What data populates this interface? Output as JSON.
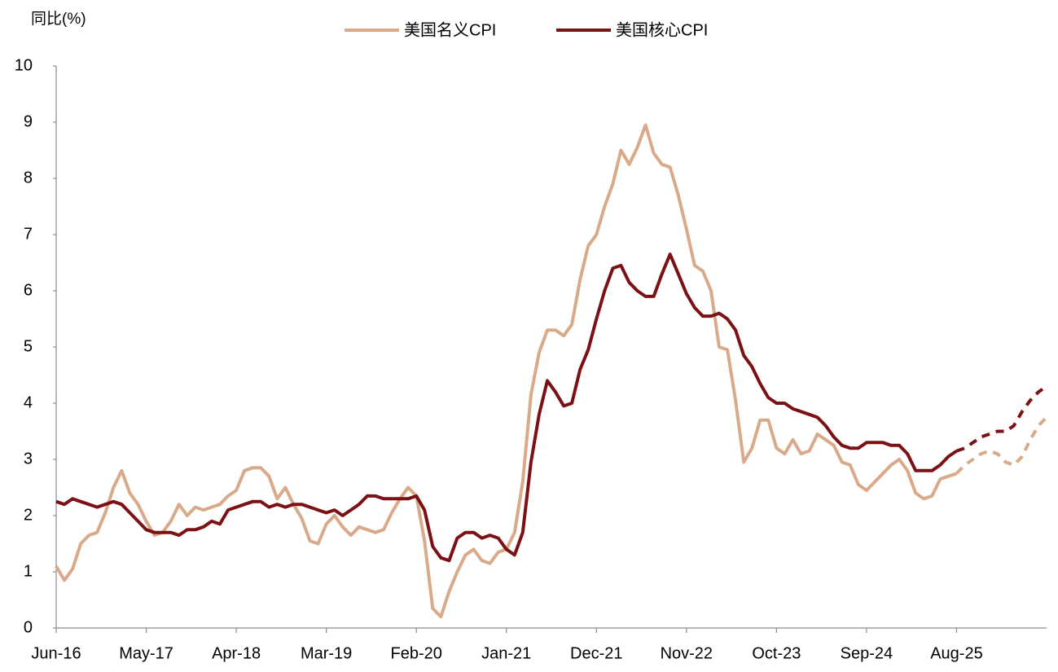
{
  "chart_data": {
    "type": "line",
    "y_label": "同比(%)",
    "legend": "top",
    "grid": false,
    "ylim": [
      0,
      10
    ],
    "yticks": [
      0,
      1,
      2,
      3,
      4,
      5,
      6,
      7,
      8,
      9,
      10
    ],
    "categories": [
      "Jun-16",
      null,
      null,
      null,
      null,
      null,
      null,
      null,
      null,
      null,
      null,
      "May-17",
      null,
      null,
      null,
      null,
      null,
      null,
      null,
      null,
      null,
      null,
      "Apr-18",
      null,
      null,
      null,
      null,
      null,
      null,
      null,
      null,
      null,
      null,
      "Mar-19",
      null,
      null,
      null,
      null,
      null,
      null,
      null,
      null,
      null,
      null,
      "Feb-20",
      null,
      null,
      null,
      null,
      null,
      null,
      null,
      null,
      null,
      null,
      "Jan-21",
      null,
      null,
      null,
      null,
      null,
      null,
      null,
      null,
      null,
      null,
      "Dec-21",
      null,
      null,
      null,
      null,
      null,
      null,
      null,
      null,
      null,
      null,
      "Nov-22",
      null,
      null,
      null,
      null,
      null,
      null,
      null,
      null,
      null,
      null,
      "Oct-23",
      null,
      null,
      null,
      null,
      null,
      null,
      null,
      null,
      null,
      null,
      "Sep-24",
      null,
      null,
      null,
      null,
      null,
      null,
      null,
      null,
      null,
      null,
      "Aug-25",
      null,
      null,
      null,
      null,
      null,
      null,
      null,
      null,
      null,
      null,
      null
    ],
    "series": [
      {
        "name": "美国名义CPI",
        "color": "#d9aa8a",
        "values": [
          1.1,
          0.85,
          1.05,
          1.5,
          1.65,
          1.7,
          2.05,
          2.5,
          2.8,
          2.4,
          2.2,
          1.9,
          1.65,
          1.7,
          1.9,
          2.2,
          2.0,
          2.15,
          2.1,
          2.15,
          2.2,
          2.35,
          2.45,
          2.8,
          2.85,
          2.85,
          2.7,
          2.3,
          2.5,
          2.2,
          1.95,
          1.55,
          1.5,
          1.85,
          2.0,
          1.8,
          1.65,
          1.8,
          1.75,
          1.7,
          1.75,
          2.05,
          2.3,
          2.5,
          2.35,
          1.55,
          0.35,
          0.2,
          0.65,
          1.0,
          1.3,
          1.4,
          1.2,
          1.15,
          1.35,
          1.4,
          1.7,
          2.6,
          4.15,
          4.9,
          5.3,
          5.3,
          5.2,
          5.4,
          6.2,
          6.8,
          7.0,
          7.5,
          7.9,
          8.5,
          8.25,
          8.55,
          8.95,
          8.45,
          8.25,
          8.2,
          7.7,
          7.1,
          6.45,
          6.35,
          6.0,
          5.0,
          4.95,
          4.05,
          2.95,
          3.2,
          3.7,
          3.7,
          3.2,
          3.1,
          3.35,
          3.1,
          3.15,
          3.45,
          3.35,
          3.25,
          2.95,
          2.9,
          2.55,
          2.45,
          2.6,
          2.75,
          2.9,
          3.0,
          2.8,
          2.4,
          2.3,
          2.35,
          2.65,
          2.7,
          2.75,
          null,
          null,
          null,
          null,
          null,
          null,
          null,
          null,
          null,
          null,
          null
        ],
        "forecast": [
          null,
          null,
          null,
          null,
          null,
          null,
          null,
          null,
          null,
          null,
          null,
          null,
          null,
          null,
          null,
          null,
          null,
          null,
          null,
          null,
          null,
          null,
          null,
          null,
          null,
          null,
          null,
          null,
          null,
          null,
          null,
          null,
          null,
          null,
          null,
          null,
          null,
          null,
          null,
          null,
          null,
          null,
          null,
          null,
          null,
          null,
          null,
          null,
          null,
          null,
          null,
          null,
          null,
          null,
          null,
          null,
          null,
          null,
          null,
          null,
          null,
          null,
          null,
          null,
          null,
          null,
          null,
          null,
          null,
          null,
          null,
          null,
          null,
          null,
          null,
          null,
          null,
          null,
          null,
          null,
          null,
          null,
          null,
          null,
          null,
          null,
          null,
          null,
          null,
          null,
          null,
          null,
          null,
          null,
          null,
          null,
          null,
          null,
          null,
          null,
          null,
          null,
          null,
          null,
          null,
          null,
          null,
          null,
          null,
          null,
          null,
          2.9,
          3.0,
          3.1,
          3.15,
          3.1,
          2.95,
          2.9,
          3.05,
          3.35,
          3.6,
          3.75
        ]
      },
      {
        "name": "美国核心CPI",
        "color": "#7b1114",
        "values": [
          2.25,
          2.2,
          2.3,
          2.25,
          2.2,
          2.15,
          2.2,
          2.25,
          2.2,
          2.05,
          1.9,
          1.75,
          1.7,
          1.7,
          1.7,
          1.65,
          1.75,
          1.75,
          1.8,
          1.9,
          1.85,
          2.1,
          2.15,
          2.2,
          2.25,
          2.25,
          2.15,
          2.2,
          2.15,
          2.2,
          2.2,
          2.15,
          2.1,
          2.05,
          2.1,
          2.0,
          2.1,
          2.2,
          2.35,
          2.35,
          2.3,
          2.3,
          2.3,
          2.3,
          2.35,
          2.1,
          1.45,
          1.25,
          1.2,
          1.6,
          1.7,
          1.7,
          1.6,
          1.65,
          1.6,
          1.4,
          1.3,
          1.7,
          2.95,
          3.8,
          4.4,
          4.2,
          3.95,
          4.0,
          4.6,
          4.95,
          5.5,
          6.0,
          6.4,
          6.45,
          6.15,
          6.0,
          5.9,
          5.9,
          6.3,
          6.65,
          6.3,
          5.95,
          5.7,
          5.55,
          5.55,
          5.6,
          5.5,
          5.3,
          4.85,
          4.65,
          4.35,
          4.1,
          4.0,
          4.0,
          3.9,
          3.85,
          3.8,
          3.75,
          3.6,
          3.4,
          3.25,
          3.2,
          3.2,
          3.3,
          3.3,
          3.3,
          3.25,
          3.25,
          3.1,
          2.8,
          2.8,
          2.8,
          2.9,
          3.05,
          3.15,
          null,
          null,
          null,
          null,
          null,
          null,
          null,
          null,
          null,
          null,
          null
        ],
        "forecast": [
          null,
          null,
          null,
          null,
          null,
          null,
          null,
          null,
          null,
          null,
          null,
          null,
          null,
          null,
          null,
          null,
          null,
          null,
          null,
          null,
          null,
          null,
          null,
          null,
          null,
          null,
          null,
          null,
          null,
          null,
          null,
          null,
          null,
          null,
          null,
          null,
          null,
          null,
          null,
          null,
          null,
          null,
          null,
          null,
          null,
          null,
          null,
          null,
          null,
          null,
          null,
          null,
          null,
          null,
          null,
          null,
          null,
          null,
          null,
          null,
          null,
          null,
          null,
          null,
          null,
          null,
          null,
          null,
          null,
          null,
          null,
          null,
          null,
          null,
          null,
          null,
          null,
          null,
          null,
          null,
          null,
          null,
          null,
          null,
          null,
          null,
          null,
          null,
          null,
          null,
          null,
          null,
          null,
          null,
          null,
          null,
          null,
          null,
          null,
          null,
          null,
          null,
          null,
          null,
          null,
          null,
          null,
          null,
          null,
          null,
          null,
          3.2,
          3.3,
          3.4,
          3.45,
          3.5,
          3.5,
          3.6,
          3.85,
          4.05,
          4.2,
          4.3
        ]
      }
    ]
  }
}
